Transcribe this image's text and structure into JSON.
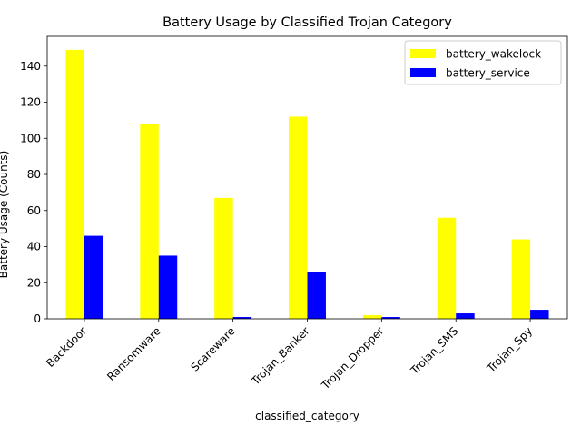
{
  "chart_data": {
    "type": "bar",
    "title": "Battery Usage by Classified Trojan Category",
    "xlabel": "classified_category",
    "ylabel": "Battery Usage (Counts)",
    "categories": [
      "Backdoor",
      "Ransomware",
      "Scareware",
      "Trojan_Banker",
      "Trojan_Dropper",
      "Trojan_SMS",
      "Trojan_Spy"
    ],
    "series": [
      {
        "name": "battery_wakelock",
        "color": "#ffff00",
        "values": [
          149,
          108,
          67,
          112,
          2,
          56,
          44
        ]
      },
      {
        "name": "battery_service",
        "color": "#0000ff",
        "values": [
          46,
          35,
          1,
          26,
          1,
          3,
          5
        ]
      }
    ],
    "ylim": [
      0,
      156.5
    ],
    "yticks": [
      0,
      20,
      40,
      60,
      80,
      100,
      120,
      140
    ],
    "grid": false,
    "legend_position": "top-right"
  }
}
